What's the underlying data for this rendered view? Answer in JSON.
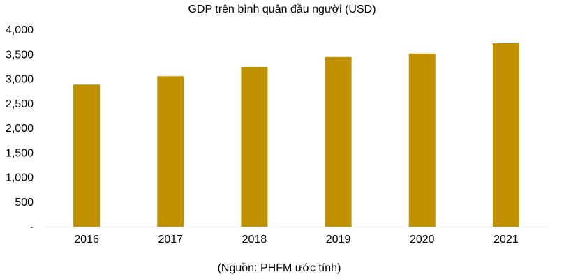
{
  "chart_data": {
    "type": "bar",
    "title": "GDP trên bình quân đầu người (USD)",
    "categories": [
      "2016",
      "2017",
      "2018",
      "2019",
      "2020",
      "2021"
    ],
    "values": [
      2890,
      3060,
      3250,
      3450,
      3520,
      3730
    ],
    "yticks": [
      "-",
      "500",
      "1,000",
      "1,500",
      "2,000",
      "2,500",
      "3,000",
      "3,500",
      "4,000"
    ],
    "ylim": [
      0,
      4000
    ],
    "grid": false,
    "legend": "none",
    "bar_color": "#BF9000"
  },
  "source_note": "(Nguồn: PHFM ước tính)"
}
